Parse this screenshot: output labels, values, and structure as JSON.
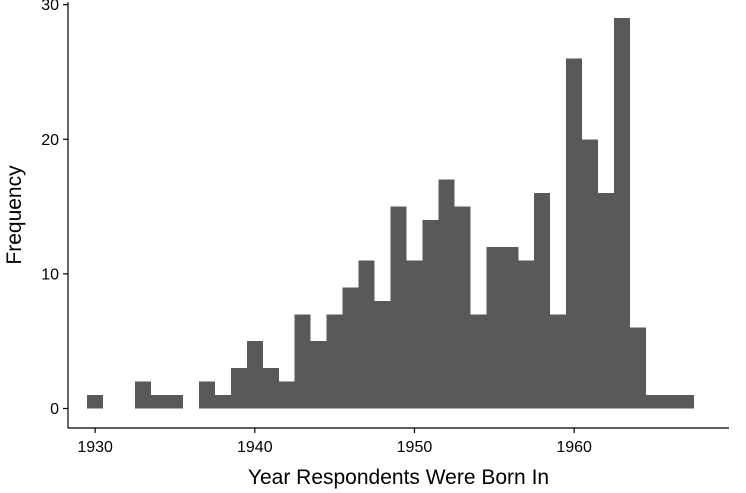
{
  "chart_data": {
    "type": "bar",
    "subtype": "histogram",
    "title": "",
    "xlabel": "Year Respondents Were Born In",
    "ylabel": "Frequency",
    "bin_width": 1,
    "bins": [
      {
        "x": 1930,
        "count": 1
      },
      {
        "x": 1931,
        "count": 0
      },
      {
        "x": 1932,
        "count": 0
      },
      {
        "x": 1933,
        "count": 2
      },
      {
        "x": 1934,
        "count": 1
      },
      {
        "x": 1935,
        "count": 1
      },
      {
        "x": 1936,
        "count": 0
      },
      {
        "x": 1937,
        "count": 2
      },
      {
        "x": 1938,
        "count": 1
      },
      {
        "x": 1939,
        "count": 3
      },
      {
        "x": 1940,
        "count": 5
      },
      {
        "x": 1941,
        "count": 3
      },
      {
        "x": 1942,
        "count": 2
      },
      {
        "x": 1943,
        "count": 7
      },
      {
        "x": 1944,
        "count": 5
      },
      {
        "x": 1945,
        "count": 7
      },
      {
        "x": 1946,
        "count": 9
      },
      {
        "x": 1947,
        "count": 11
      },
      {
        "x": 1948,
        "count": 8
      },
      {
        "x": 1949,
        "count": 15
      },
      {
        "x": 1950,
        "count": 11
      },
      {
        "x": 1951,
        "count": 14
      },
      {
        "x": 1952,
        "count": 17
      },
      {
        "x": 1953,
        "count": 15
      },
      {
        "x": 1954,
        "count": 7
      },
      {
        "x": 1955,
        "count": 12
      },
      {
        "x": 1956,
        "count": 12
      },
      {
        "x": 1957,
        "count": 11
      },
      {
        "x": 1958,
        "count": 16
      },
      {
        "x": 1959,
        "count": 7
      },
      {
        "x": 1960,
        "count": 26
      },
      {
        "x": 1961,
        "count": 20
      },
      {
        "x": 1962,
        "count": 16
      },
      {
        "x": 1963,
        "count": 29
      },
      {
        "x": 1964,
        "count": 6
      },
      {
        "x": 1965,
        "count": 1
      },
      {
        "x": 1966,
        "count": 1
      },
      {
        "x": 1967,
        "count": 1
      }
    ],
    "xlim": [
      1928.3,
      1969.7
    ],
    "ylim": [
      -1.45,
      30.2
    ],
    "x_ticks": [
      1930,
      1940,
      1950,
      1960
    ],
    "y_ticks": [
      0,
      10,
      20,
      30
    ],
    "grid": false,
    "legend": "none",
    "bar_color": "#595959",
    "axis_color": "#000000"
  }
}
